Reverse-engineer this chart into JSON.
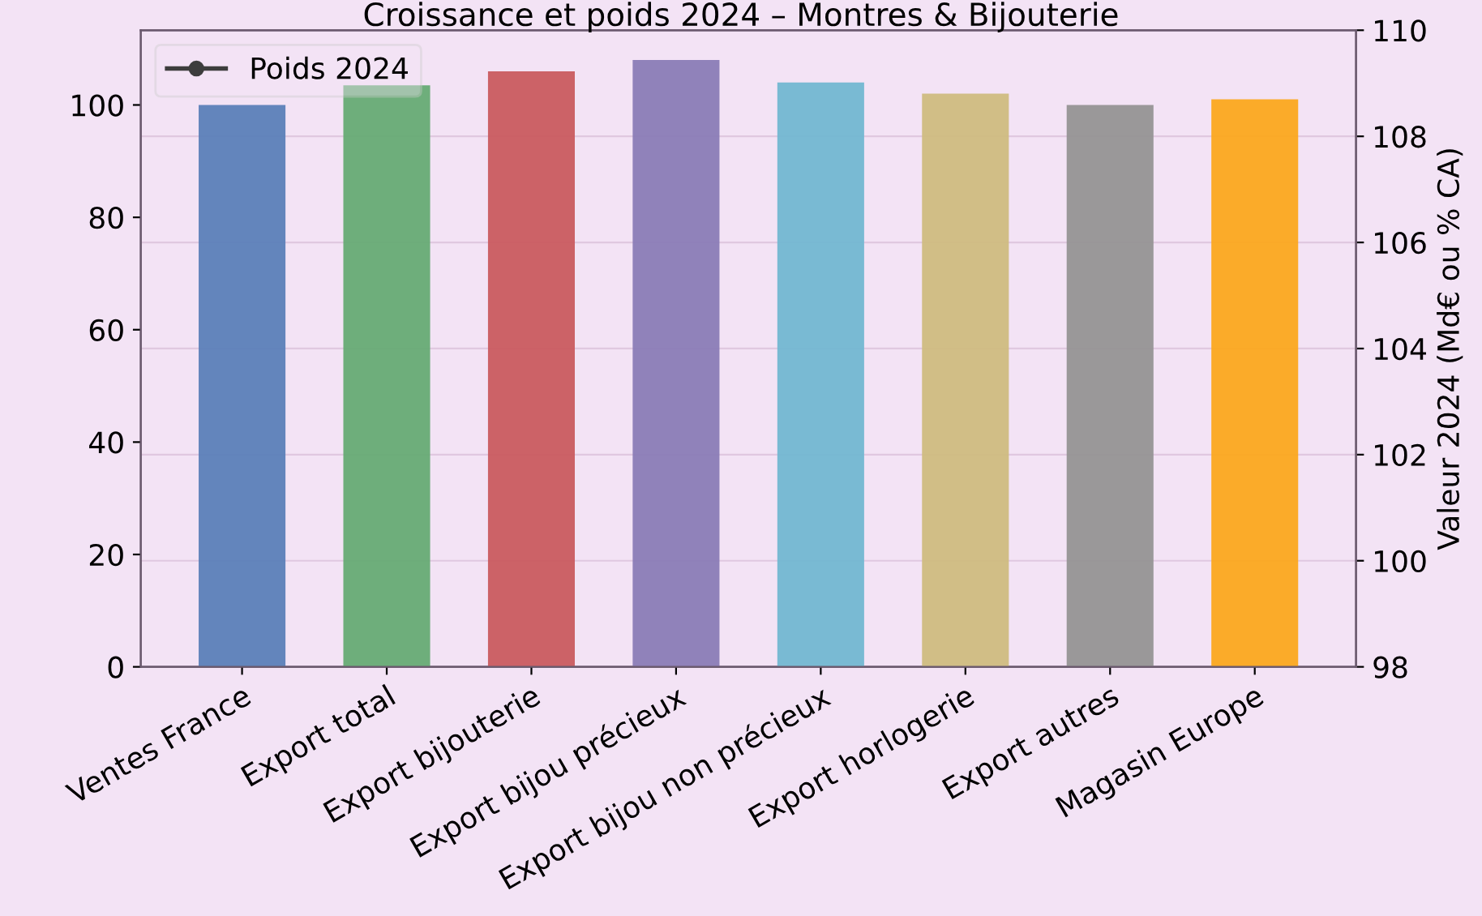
{
  "chart_data": {
    "type": "bar",
    "title": "Croissance et poids 2024 – Montres & Bijouterie",
    "categories": [
      "Ventes France",
      "Export total",
      "Export bijouterie",
      "Export bijou précieux",
      "Export bijou non précieux",
      "Export horlogerie",
      "Export autres",
      "Magasin Europe"
    ],
    "series": [
      {
        "colors": [
          "#5b7fb8",
          "#66ab74",
          "#c95b5f",
          "#8a7cb6",
          "#72b7d1",
          "#cfbc80",
          "#959394",
          "#fba81d"
        ],
        "values": [
          100,
          103.5,
          106,
          108,
          104,
          102,
          100,
          101
        ]
      },
      {
        "type": "line",
        "name": "Poids 2024",
        "color": "#3d3d3d",
        "marker": "circle",
        "values": [
          null,
          null,
          null,
          null,
          null,
          null,
          null,
          null
        ]
      }
    ],
    "ylim": [
      0,
      113.3
    ],
    "yticks": [
      0,
      20,
      40,
      60,
      80,
      100
    ],
    "y2lim": [
      98,
      110
    ],
    "y2ticks": [
      98,
      100,
      102,
      104,
      106,
      108,
      110
    ],
    "y2label": "Valeur 2024 (Md€ ou % CA)",
    "grid": "y",
    "legend": "top left"
  }
}
